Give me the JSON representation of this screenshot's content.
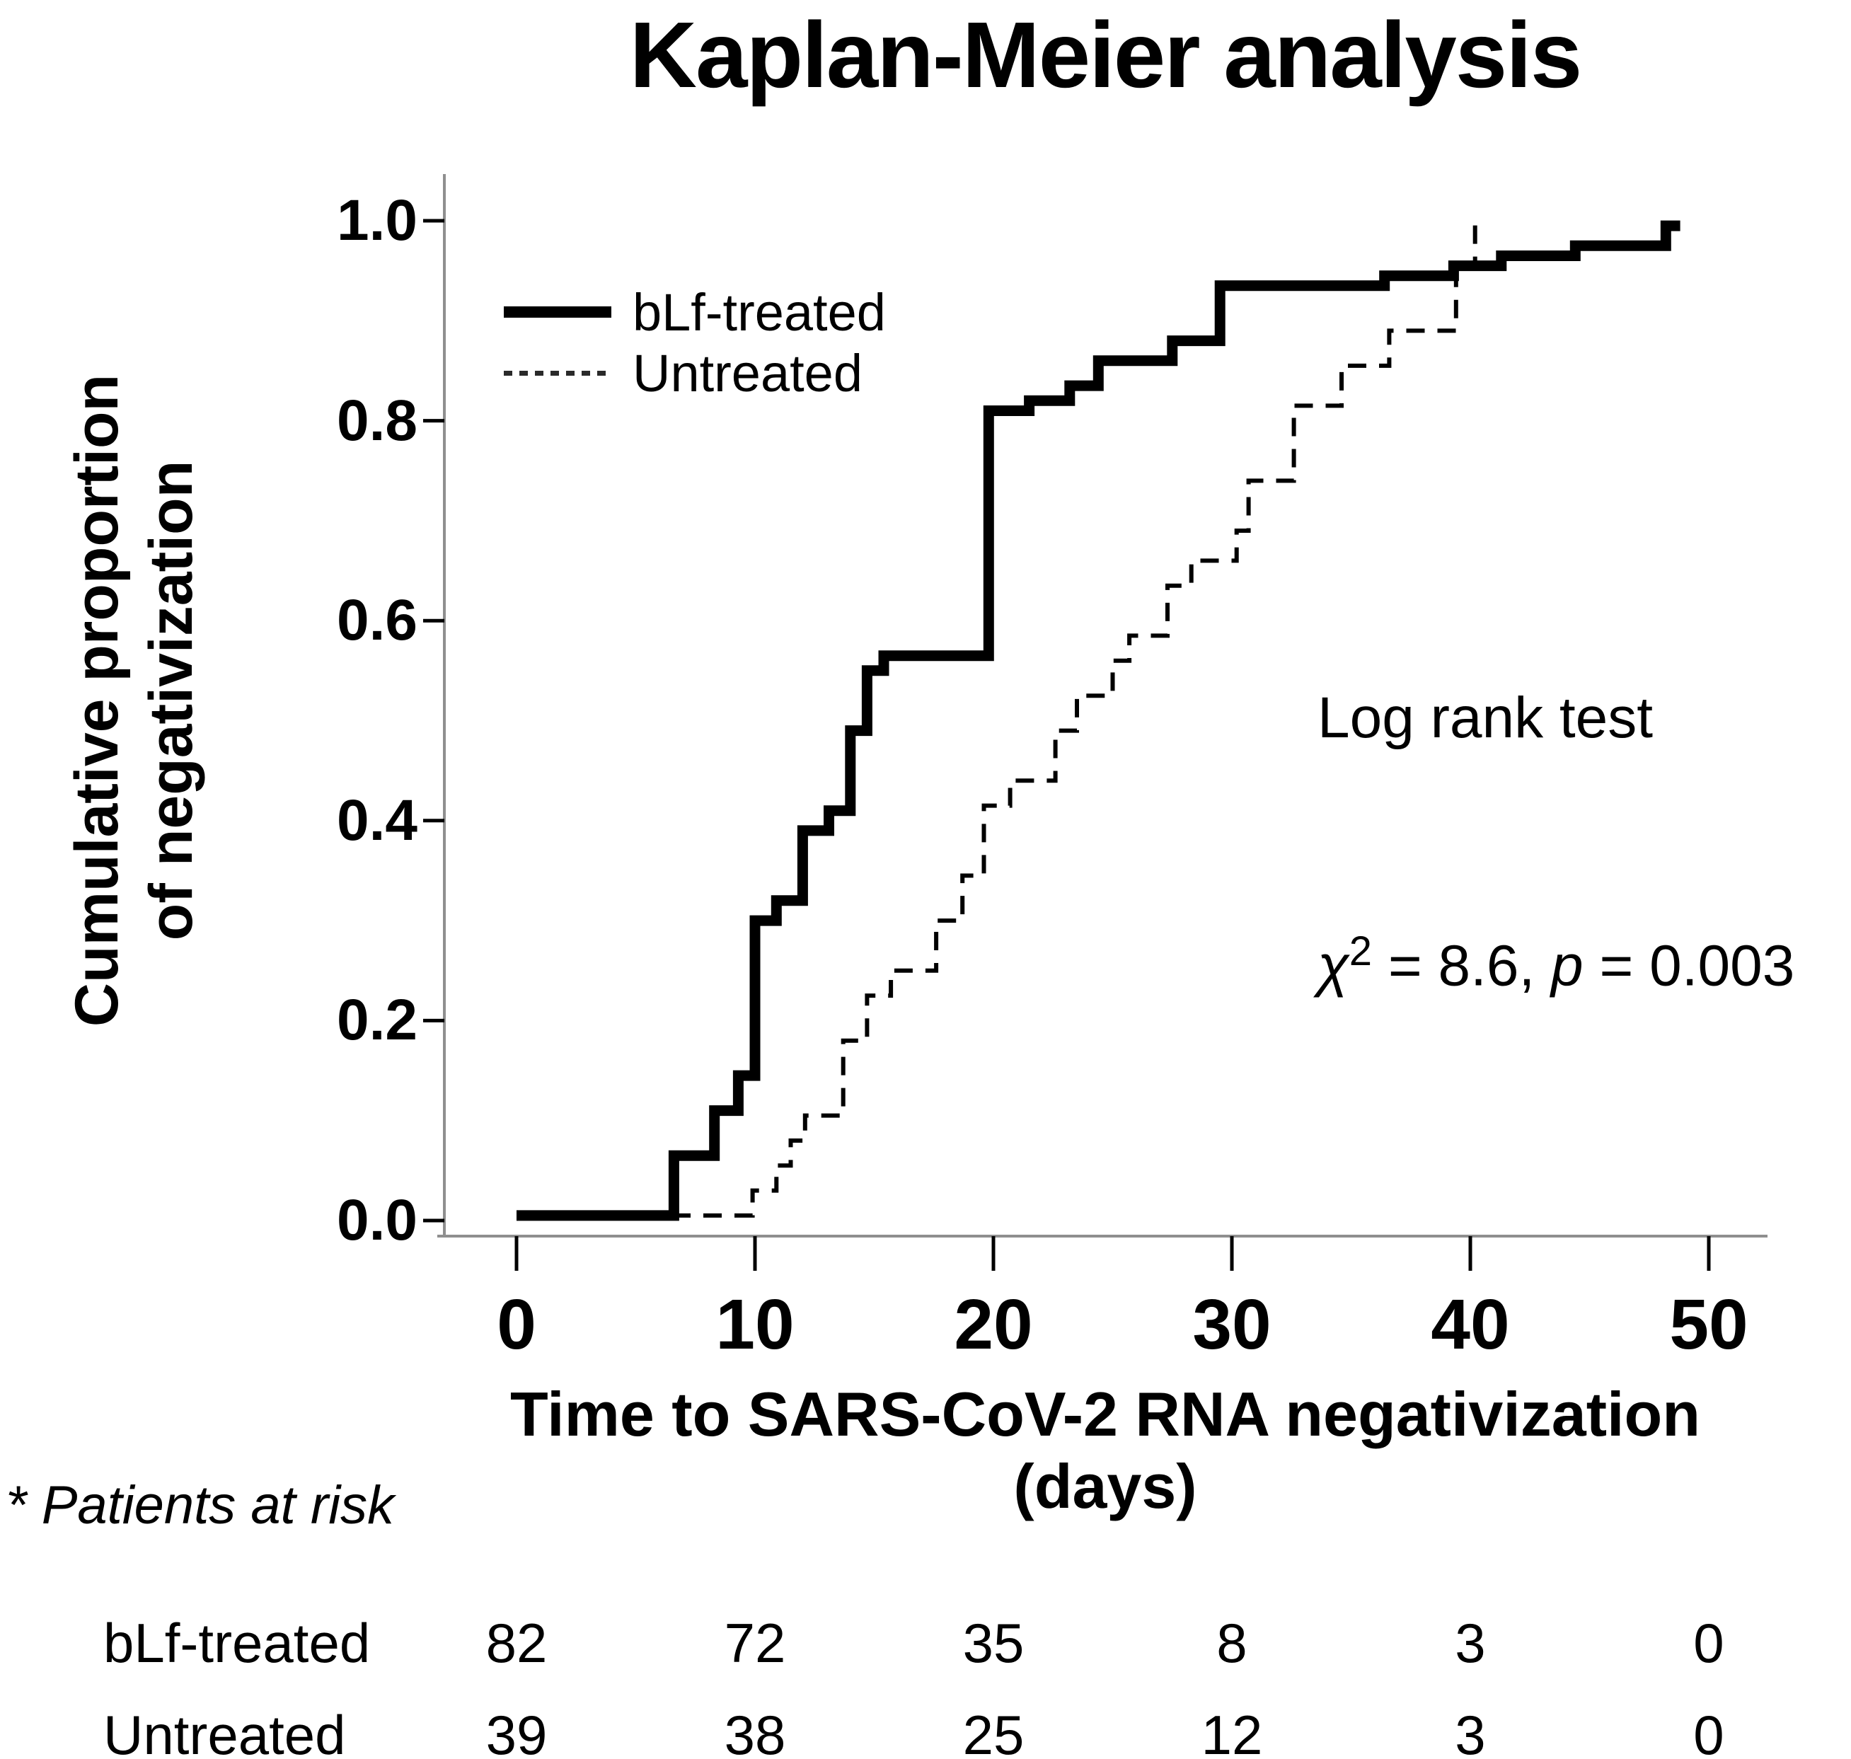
{
  "title": "Kaplan-Meier analysis",
  "y_axis": {
    "label_line1": "Cumulative proportion",
    "label_line2": "of negativization",
    "tick_labels": [
      "1.0",
      "0.8",
      "0.6",
      "0.4",
      "0.2",
      "0.0"
    ]
  },
  "x_axis": {
    "label": "Time to SARS-CoV-2 RNA negativization (days)",
    "tick_labels": [
      "0",
      "10",
      "20",
      "30",
      "40",
      "50"
    ]
  },
  "legend": [
    {
      "label": "bLf-treated",
      "style": "solid"
    },
    {
      "label": "Untreated",
      "style": "dashed"
    }
  ],
  "annotation": {
    "line1": "Log rank test",
    "chi": "χ",
    "chi_sup": "2",
    "stat": " = 8.6, ",
    "p_symbol": "p",
    "p_value": " = 0.003"
  },
  "risk_table": {
    "heading": "* Patients at risk",
    "times": [
      0,
      10,
      20,
      30,
      40,
      50
    ],
    "rows": [
      {
        "label": "bLf-treated",
        "counts": [
          "82",
          "72",
          "35",
          "8",
          "3",
          "0"
        ]
      },
      {
        "label": "Untreated",
        "counts": [
          "39",
          "38",
          "25",
          "12",
          "3",
          "0"
        ]
      }
    ]
  },
  "colors": {
    "curve": "#000000",
    "spine": "#8f8f8f",
    "tick": "#000000",
    "text": "#000000"
  },
  "chart_data": {
    "type": "line",
    "subtype": "kaplan-meier-step",
    "title": "Kaplan-Meier analysis",
    "xlabel": "Time to SARS-CoV-2 RNA negativization (days)",
    "ylabel": "Cumulative proportion of negativization",
    "xlim": [
      0,
      52
    ],
    "ylim": [
      0.0,
      1.0
    ],
    "x_ticks": [
      0,
      10,
      20,
      30,
      40,
      50
    ],
    "y_ticks": [
      0.0,
      0.2,
      0.4,
      0.6,
      0.8,
      1.0
    ],
    "grid": false,
    "legend_position": "top-left-inside",
    "annotation_text": "Log rank test, chi-square = 8.6, p = 0.003",
    "series": [
      {
        "name": "bLf-treated",
        "style": "solid",
        "n": 82,
        "end_x": 48.8,
        "steps": [
          [
            0,
            0.005
          ],
          [
            6.6,
            0.065
          ],
          [
            8.3,
            0.11
          ],
          [
            9.3,
            0.145
          ],
          [
            10.0,
            0.3
          ],
          [
            10.9,
            0.32
          ],
          [
            12.0,
            0.39
          ],
          [
            13.1,
            0.41
          ],
          [
            14.0,
            0.49
          ],
          [
            14.7,
            0.55
          ],
          [
            15.4,
            0.565
          ],
          [
            19.8,
            0.81
          ],
          [
            21.5,
            0.82
          ],
          [
            23.2,
            0.835
          ],
          [
            24.4,
            0.86
          ],
          [
            27.5,
            0.88
          ],
          [
            29.5,
            0.935
          ],
          [
            36.4,
            0.945
          ],
          [
            39.3,
            0.955
          ],
          [
            41.3,
            0.965
          ],
          [
            44.4,
            0.975
          ],
          [
            48.2,
            0.995
          ]
        ]
      },
      {
        "name": "Untreated",
        "style": "dashed",
        "n": 39,
        "end_x": 40.4,
        "steps": [
          [
            0,
            0.005
          ],
          [
            9.9,
            0.03
          ],
          [
            10.9,
            0.055
          ],
          [
            11.5,
            0.08
          ],
          [
            12.1,
            0.105
          ],
          [
            13.7,
            0.18
          ],
          [
            14.7,
            0.225
          ],
          [
            15.7,
            0.25
          ],
          [
            17.6,
            0.3
          ],
          [
            18.7,
            0.345
          ],
          [
            19.6,
            0.415
          ],
          [
            20.7,
            0.44
          ],
          [
            22.6,
            0.49
          ],
          [
            23.5,
            0.525
          ],
          [
            25.0,
            0.56
          ],
          [
            25.7,
            0.585
          ],
          [
            27.3,
            0.635
          ],
          [
            28.3,
            0.66
          ],
          [
            30.2,
            0.69
          ],
          [
            30.7,
            0.74
          ],
          [
            32.6,
            0.815
          ],
          [
            34.6,
            0.855
          ],
          [
            36.6,
            0.89
          ],
          [
            39.4,
            0.955
          ],
          [
            40.2,
            1.0
          ]
        ]
      }
    ],
    "patients_at_risk": {
      "times": [
        0,
        10,
        20,
        30,
        40,
        50
      ],
      "bLf_treated": [
        82,
        72,
        35,
        8,
        3,
        0
      ],
      "untreated": [
        39,
        38,
        25,
        12,
        3,
        0
      ]
    }
  }
}
